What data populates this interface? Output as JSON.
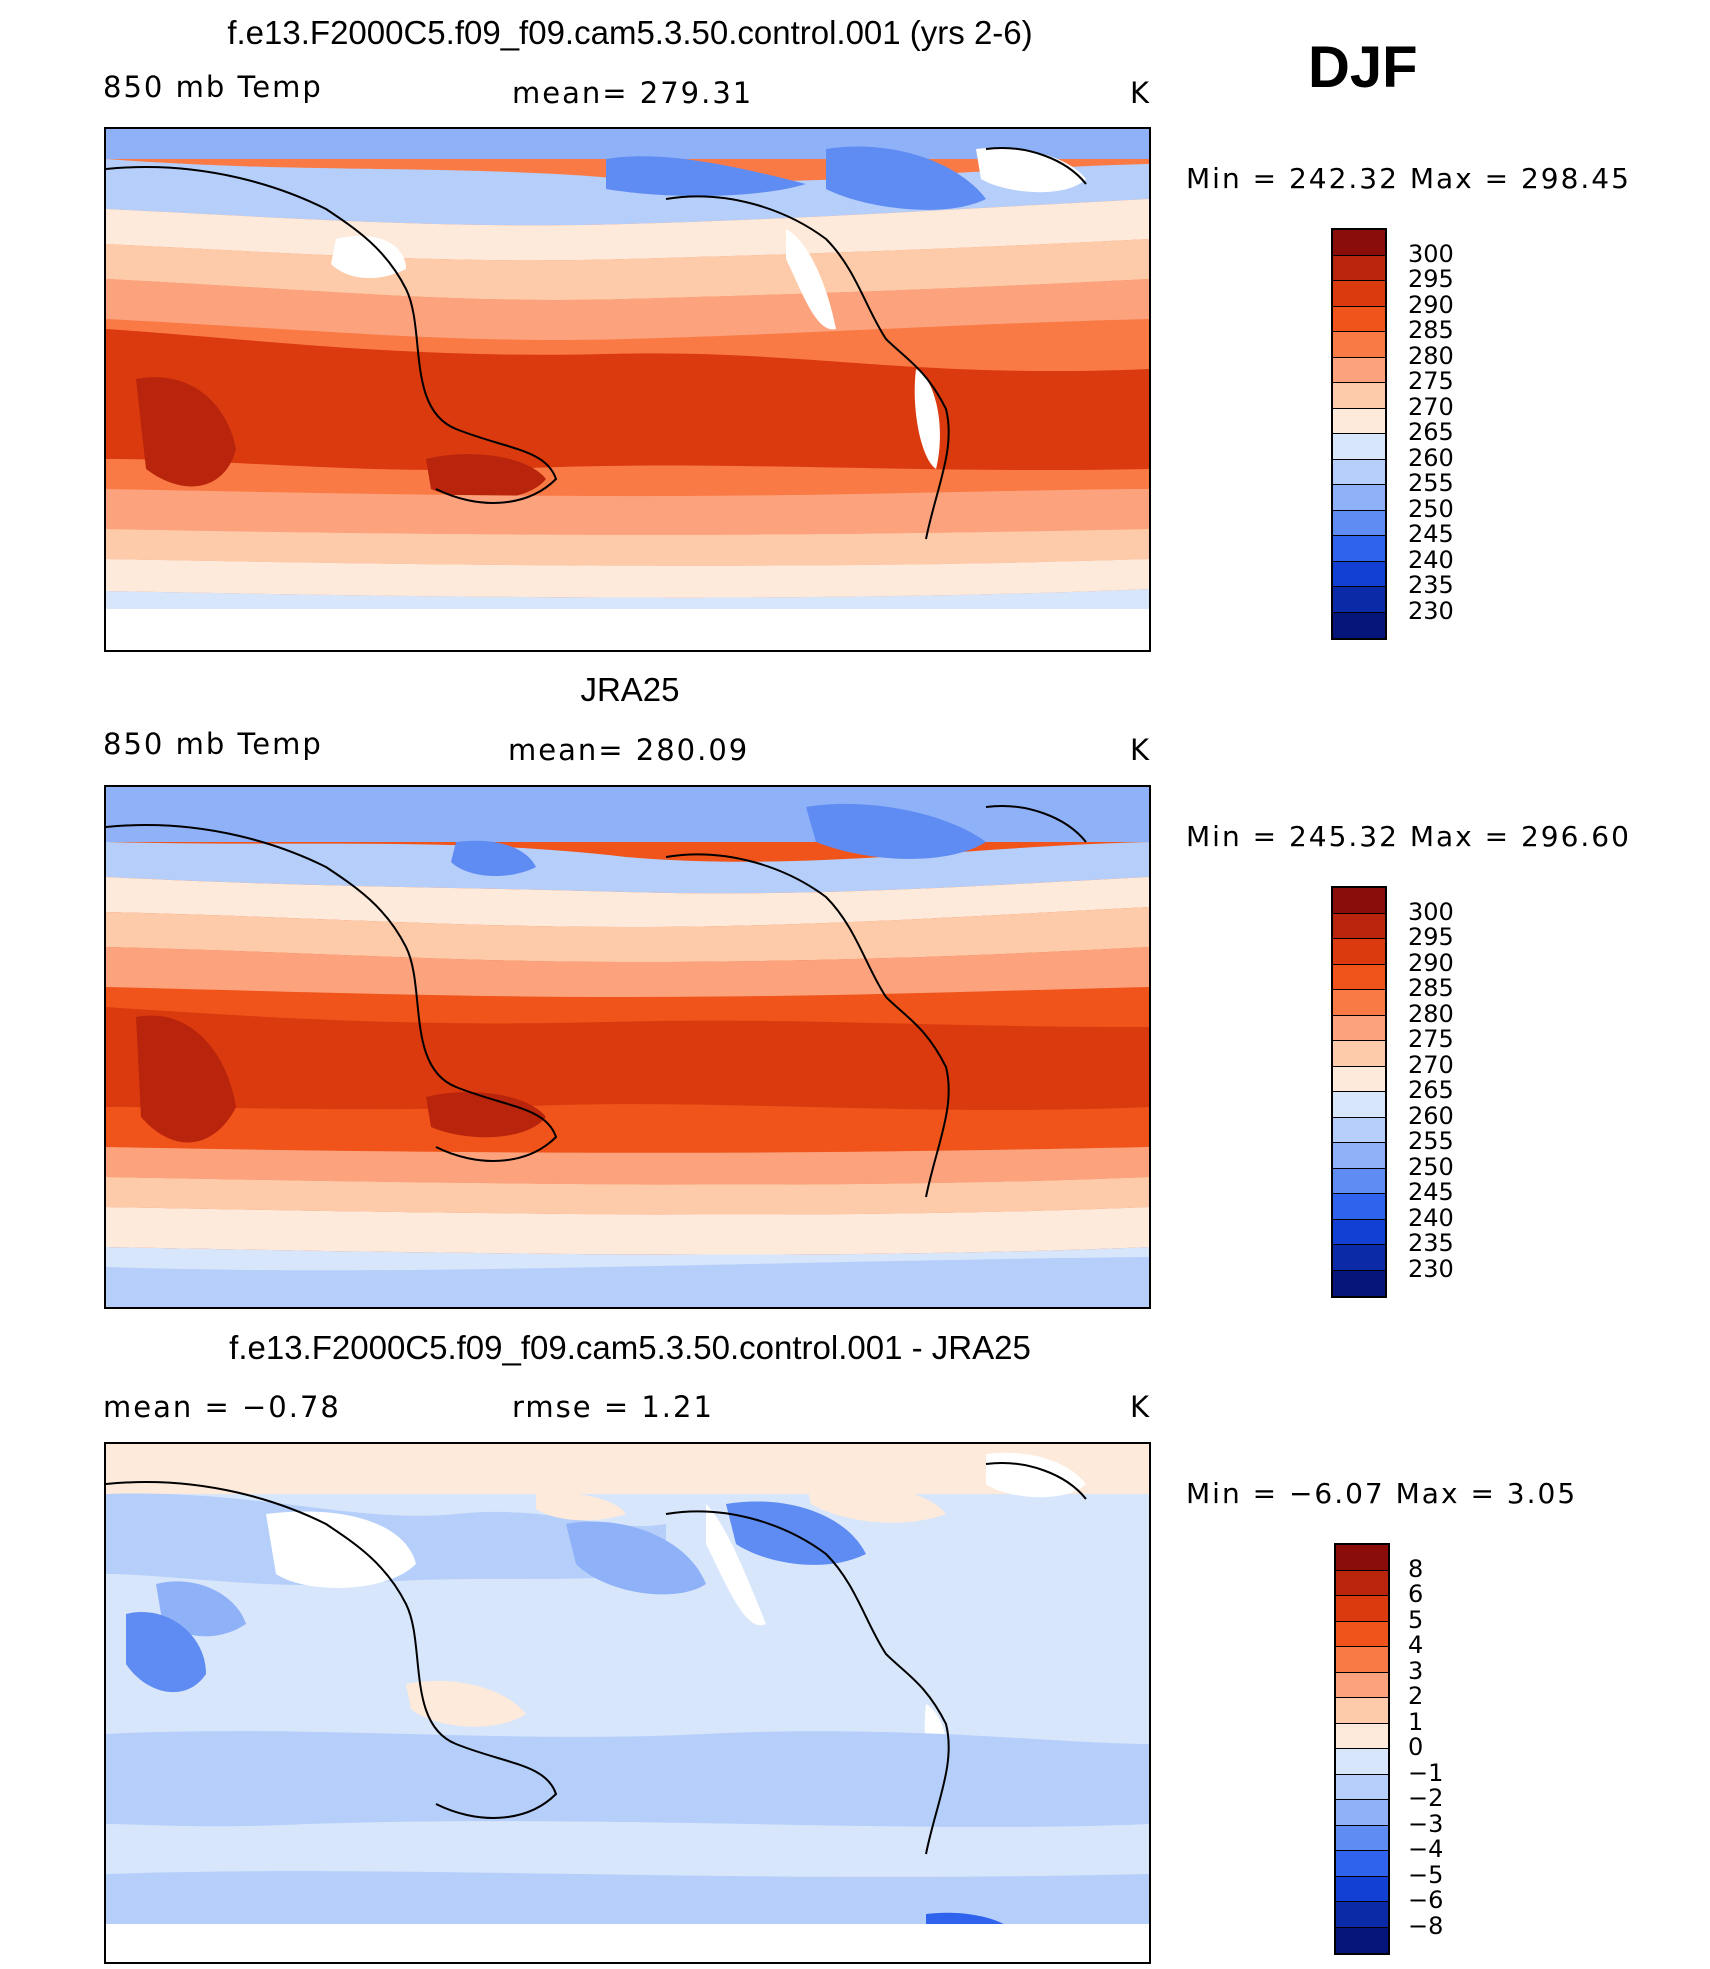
{
  "season": "DJF",
  "panels": [
    {
      "title": "f.e13.F2000C5.f09_f09.cam5.3.50.control.001 (yrs 2-6)",
      "left": "850 mb Temp",
      "center": "mean= 279.31",
      "right": "K",
      "minmax": "Min = 242.32 Max = 298.45"
    },
    {
      "title": "JRA25",
      "left": "850 mb Temp",
      "center": "mean= 280.09",
      "right": "K",
      "minmax": "Min = 245.32 Max = 296.60"
    },
    {
      "title": "f.e13.F2000C5.f09_f09.cam5.3.50.control.001 - JRA25",
      "left": "mean =   −0.78",
      "center": "rmse =    1.21",
      "right": "K",
      "minmax": "Min =   −6.07 Max =     3.05"
    }
  ],
  "colorbars": {
    "temp": {
      "labels": [
        "300",
        "295",
        "290",
        "285",
        "280",
        "275",
        "270",
        "265",
        "260",
        "255",
        "250",
        "245",
        "240",
        "235",
        "230"
      ],
      "colors": [
        "#8b0d0a",
        "#b8240c",
        "#da3a0e",
        "#f0541a",
        "#fa7a45",
        "#fca37e",
        "#fdcbaa",
        "#feeadb",
        "#d7e6fb",
        "#b5cefa",
        "#8fb1f8",
        "#5f8cf2",
        "#2f63ee",
        "#1240d4",
        "#0b2aa8",
        "#06157a"
      ]
    },
    "diff": {
      "labels": [
        "8",
        "6",
        "5",
        "4",
        "3",
        "2",
        "1",
        "0",
        "−1",
        "−2",
        "−3",
        "−4",
        "−5",
        "−6",
        "−8"
      ],
      "colors": [
        "#8b0d0a",
        "#b8240c",
        "#da3a0e",
        "#f0541a",
        "#fa7a45",
        "#fca37e",
        "#fdcbaa",
        "#feeadb",
        "#d7e6fb",
        "#b5cefa",
        "#8fb1f8",
        "#5f8cf2",
        "#2f63ee",
        "#1240d4",
        "#0b2aa8",
        "#06157a"
      ]
    }
  }
}
